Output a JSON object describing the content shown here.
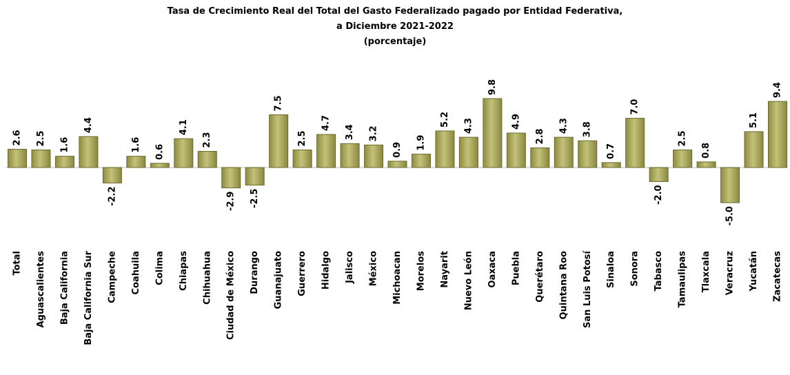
{
  "chart_data": {
    "type": "bar",
    "title": "Tasa de Crecimiento Real del Total del Gasto Federalizado pagado por Entidad Federativa,",
    "subtitle": "a Diciembre 2021-2022",
    "unit_label": "(porcentaje)",
    "categories": [
      "Total",
      "Aguascalientes",
      "Baja California",
      "Baja California Sur",
      "Campeche",
      "Coahuila",
      "Colima",
      "Chiapas",
      "Chihuahua",
      "Ciudad de México",
      "Durango",
      "Guanajuato",
      "Guerrero",
      "Hidalgo",
      "Jalisco",
      "México",
      "Michoacan",
      "Morelos",
      "Nayarit",
      "Nuevo León",
      "Oaxaca",
      "Puebla",
      "Querétaro",
      "Quintana Roo",
      "San Luis Potosí",
      "Sinaloa",
      "Sonora",
      "Tabasco",
      "Tamaulipas",
      "Tlaxcala",
      "Veracruz",
      "Yucatán",
      "Zacatecas"
    ],
    "values": [
      2.6,
      2.5,
      1.6,
      4.4,
      -2.2,
      1.6,
      0.6,
      4.1,
      2.3,
      -2.9,
      -2.5,
      7.5,
      2.5,
      4.7,
      3.4,
      3.2,
      0.9,
      1.9,
      5.2,
      4.3,
      9.8,
      4.9,
      2.8,
      4.3,
      3.8,
      0.7,
      7.0,
      -2.0,
      2.5,
      0.8,
      -5.0,
      5.1,
      9.4
    ],
    "value_labels": [
      "2.6",
      "2.5",
      "1.6",
      "4.4",
      "-2.2",
      "1.6",
      "0.6",
      "4.1",
      "2.3",
      "-2.9",
      "-2.5",
      "7.5",
      "2.5",
      "4.7",
      "3.4",
      "3.2",
      "0.9",
      "1.9",
      "5.2",
      "4.3",
      "9.8",
      "4.9",
      "2.8",
      "4.3",
      "3.8",
      "0.7",
      "7.0",
      "-2.0",
      "2.5",
      "0.8",
      "-5.0",
      "5.1",
      "9.4"
    ],
    "color": "#a8a65a"
  }
}
